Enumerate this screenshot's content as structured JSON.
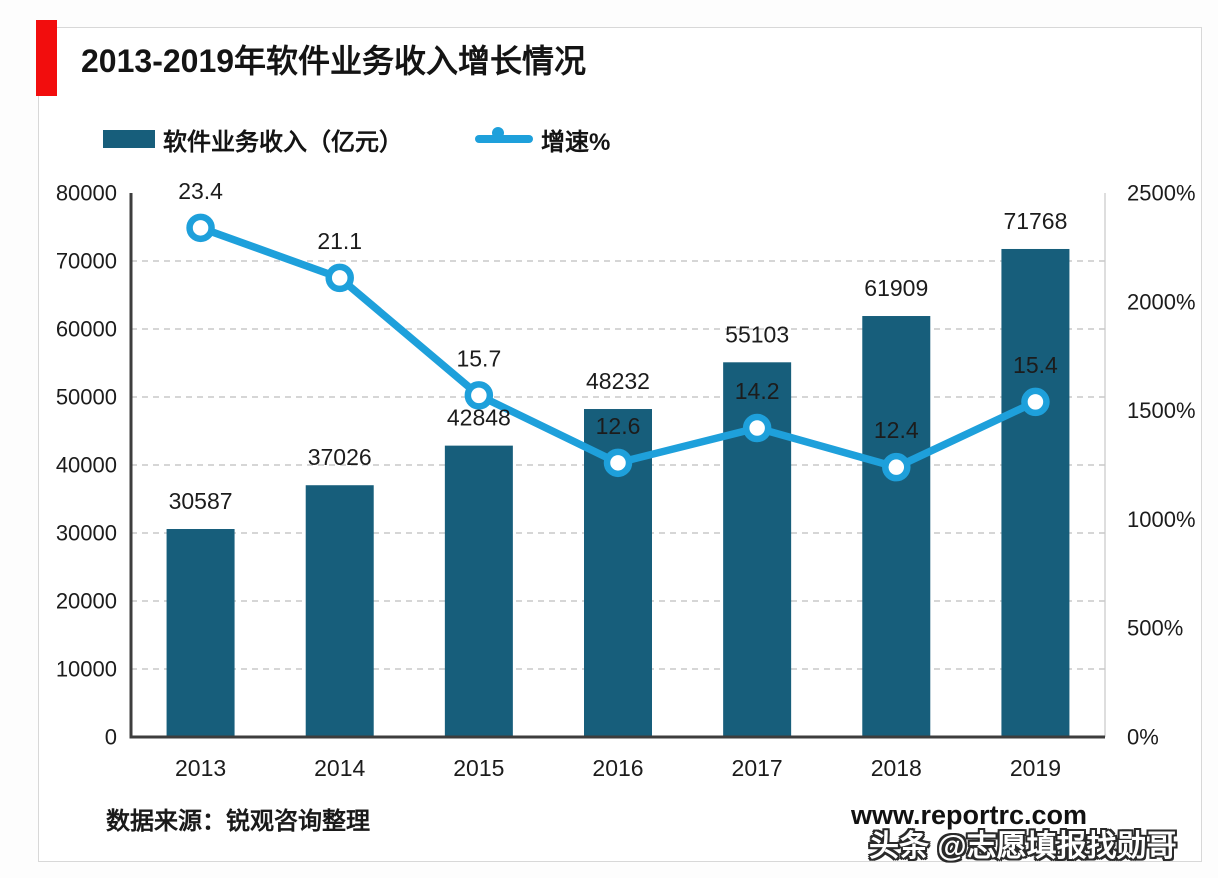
{
  "title": "2013-2019年软件业务收入增长情况",
  "legend": {
    "bar_label": "软件业务收入（亿元）",
    "line_label": "增速%"
  },
  "footer": {
    "source": "数据来源：锐观咨询整理",
    "website": "www.reportrc.com",
    "watermark": "头条 @志愿填报找勋哥"
  },
  "colors": {
    "bar": "#175E7B",
    "line": "#1EA0DB",
    "accent_red": "#F20D0D",
    "grid": "#c9c9c9",
    "axis": "#3d3d3d",
    "plot_border": "#c9c9c9",
    "text": "#1c1c1c",
    "card_border": "#d8d8d8"
  },
  "chart_data": {
    "type": "bar",
    "subtype": "bar+line combo",
    "title": "2013-2019年软件业务收入增长情况",
    "categories": [
      "2013",
      "2014",
      "2015",
      "2016",
      "2017",
      "2018",
      "2019"
    ],
    "series": [
      {
        "name": "软件业务收入（亿元）",
        "type": "bar",
        "axis": "left",
        "values": [
          30587,
          37026,
          42848,
          48232,
          55103,
          61909,
          71768
        ]
      },
      {
        "name": "增速%",
        "type": "line",
        "axis": "right",
        "values": [
          23.4,
          21.1,
          15.7,
          12.6,
          14.2,
          12.4,
          15.4
        ],
        "note": "plotted against right axis as value×100"
      }
    ],
    "left_axis": {
      "min": 0,
      "max": 80000,
      "step": 10000,
      "ticks": [
        "0",
        "10000",
        "20000",
        "30000",
        "40000",
        "50000",
        "60000",
        "70000",
        "80000"
      ]
    },
    "right_axis": {
      "min": 0,
      "max": 2500,
      "step": 500,
      "ticks": [
        "0%",
        "500%",
        "1000%",
        "1500%",
        "2000%",
        "2500%"
      ]
    },
    "grid": "dashed horizontal gridlines",
    "legend_position": "top-left"
  }
}
